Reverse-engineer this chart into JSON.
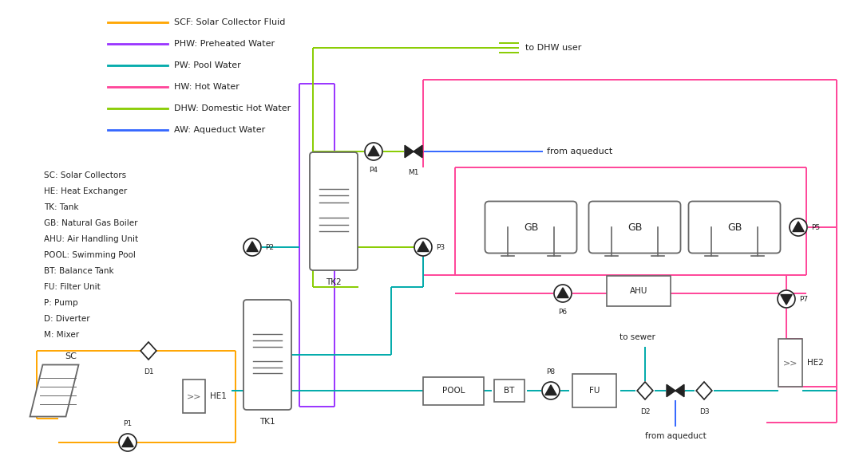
{
  "colors": {
    "SCF": "#FFA500",
    "PHW": "#9933FF",
    "PW": "#00AAAA",
    "HW": "#FF4499",
    "DHW": "#88CC00",
    "AW": "#3366FF",
    "black": "#222222",
    "gray": "#666666",
    "bg": "#ffffff"
  },
  "legend_lines": [
    {
      "label": "SCF: Solar Collector Fluid",
      "color": "#FFA500"
    },
    {
      "label": "PHW: Preheated Water",
      "color": "#9933FF"
    },
    {
      "label": "PW: Pool Water",
      "color": "#00AAAA"
    },
    {
      "label": "HW: Hot Water",
      "color": "#FF4499"
    },
    {
      "label": "DHW: Domestic Hot Water",
      "color": "#88CC00"
    },
    {
      "label": "AW: Aqueduct Water",
      "color": "#3366FF"
    }
  ],
  "legend_text": [
    "SC: Solar Collectors",
    "HE: Heat Exchanger",
    "TK: Tank",
    "GB: Natural Gas Boiler",
    "AHU: Air Handling Unit",
    "POOL: Swimming Pool",
    "BT: Balance Tank",
    "FU: Filter Unit",
    "P: Pump",
    "D: Diverter",
    "M: Mixer"
  ],
  "fig_w": 10.71,
  "fig_h": 5.87,
  "dpi": 100
}
